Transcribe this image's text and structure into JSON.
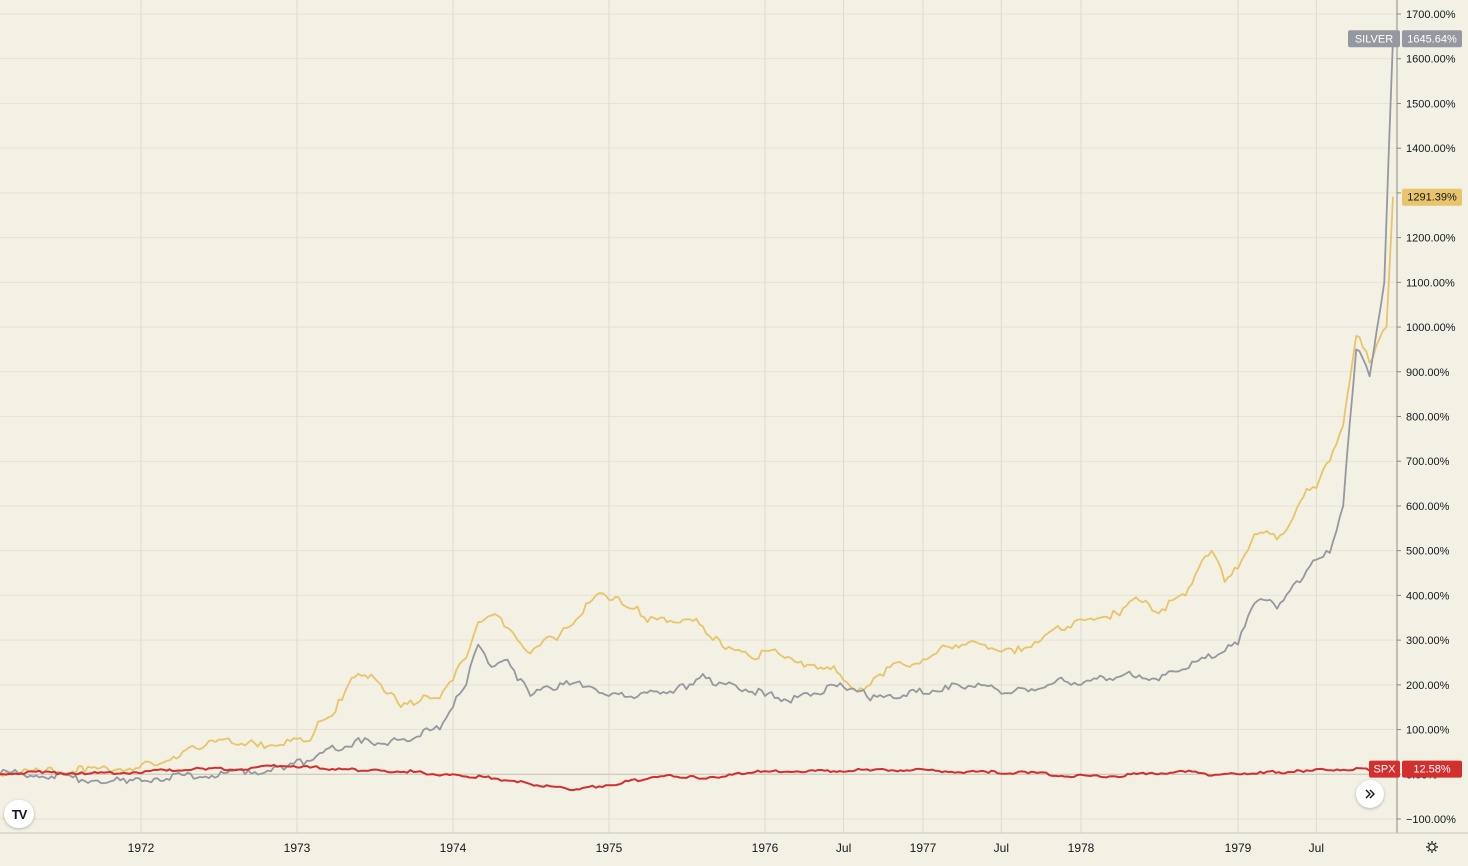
{
  "chart_data": {
    "type": "line",
    "x_range": [
      "1971-03",
      "1979-12"
    ],
    "ylim": [
      -100,
      1700
    ],
    "y_ticks": [
      -100,
      0,
      100,
      200,
      300,
      400,
      500,
      600,
      700,
      800,
      900,
      1000,
      1100,
      1200,
      1300,
      1400,
      1500,
      1600,
      1700
    ],
    "y_tick_labels": [
      "−100.00%",
      "0.00%",
      "100.00%",
      "200.00%",
      "300.00%",
      "400.00%",
      "500.00%",
      "600.00%",
      "700.00%",
      "800.00%",
      "900.00%",
      "1000.00%",
      "1100.00%",
      "1200.00%",
      "1300.00%",
      "1400.00%",
      "1500.00%",
      "1600.00%",
      "1700.00%"
    ],
    "x_ticks": [
      {
        "date": "1972-01",
        "label": "1972"
      },
      {
        "date": "1973-01",
        "label": "1973"
      },
      {
        "date": "1974-01",
        "label": "1974"
      },
      {
        "date": "1975-01",
        "label": "1975"
      },
      {
        "date": "1976-01",
        "label": "1976"
      },
      {
        "date": "1976-07",
        "label": "Jul"
      },
      {
        "date": "1977-01",
        "label": "1977"
      },
      {
        "date": "1977-07",
        "label": "Jul"
      },
      {
        "date": "1978-01",
        "label": "1978"
      },
      {
        "date": "1979-01",
        "label": "1979"
      },
      {
        "date": "1979-07",
        "label": "Jul"
      }
    ],
    "grid": true,
    "scale": "percent",
    "series": [
      {
        "name": "",
        "color": "#e8c46a",
        "last_value_label": "1291.39%",
        "points": [
          [
            "1971-03",
            0
          ],
          [
            "1971-06",
            2
          ],
          [
            "1971-09",
            5
          ],
          [
            "1971-12",
            10
          ],
          [
            "1972-02",
            20
          ],
          [
            "1972-04",
            40
          ],
          [
            "1972-06",
            65
          ],
          [
            "1972-08",
            70
          ],
          [
            "1972-10",
            62
          ],
          [
            "1972-12",
            65
          ],
          [
            "1973-02",
            75
          ],
          [
            "1973-03",
            120
          ],
          [
            "1973-04",
            140
          ],
          [
            "1973-05",
            200
          ],
          [
            "1973-06",
            220
          ],
          [
            "1973-07",
            215
          ],
          [
            "1973-08",
            180
          ],
          [
            "1973-09",
            150
          ],
          [
            "1973-10",
            155
          ],
          [
            "1973-11",
            175
          ],
          [
            "1973-12",
            170
          ],
          [
            "1974-01",
            210
          ],
          [
            "1974-02",
            260
          ],
          [
            "1974-03",
            340
          ],
          [
            "1974-04",
            355
          ],
          [
            "1974-05",
            330
          ],
          [
            "1974-06",
            300
          ],
          [
            "1974-07",
            270
          ],
          [
            "1974-08",
            300
          ],
          [
            "1974-09",
            300
          ],
          [
            "1974-10",
            330
          ],
          [
            "1974-11",
            360
          ],
          [
            "1974-12",
            400
          ],
          [
            "1975-01",
            390
          ],
          [
            "1975-02",
            380
          ],
          [
            "1975-03",
            370
          ],
          [
            "1975-04",
            340
          ],
          [
            "1975-06",
            340
          ],
          [
            "1975-08",
            335
          ],
          [
            "1975-09",
            300
          ],
          [
            "1975-10",
            280
          ],
          [
            "1975-12",
            260
          ],
          [
            "1976-02",
            270
          ],
          [
            "1976-04",
            240
          ],
          [
            "1976-06",
            235
          ],
          [
            "1976-07",
            210
          ],
          [
            "1976-08",
            185
          ],
          [
            "1976-09",
            200
          ],
          [
            "1976-10",
            220
          ],
          [
            "1976-11",
            250
          ],
          [
            "1976-12",
            240
          ],
          [
            "1977-02",
            270
          ],
          [
            "1977-04",
            290
          ],
          [
            "1977-06",
            280
          ],
          [
            "1977-08",
            270
          ],
          [
            "1977-10",
            300
          ],
          [
            "1977-12",
            330
          ],
          [
            "1978-02",
            345
          ],
          [
            "1978-04",
            355
          ],
          [
            "1978-05",
            390
          ],
          [
            "1978-07",
            360
          ],
          [
            "1978-09",
            400
          ],
          [
            "1978-10",
            460
          ],
          [
            "1978-11",
            500
          ],
          [
            "1978-12",
            430
          ],
          [
            "1979-01",
            460
          ],
          [
            "1979-02",
            520
          ],
          [
            "1979-03",
            540
          ],
          [
            "1979-04",
            525
          ],
          [
            "1979-05",
            560
          ],
          [
            "1979-06",
            620
          ],
          [
            "1979-07",
            640
          ],
          [
            "1979-08",
            700
          ],
          [
            "1979-09",
            780
          ],
          [
            "1979-10",
            980
          ],
          [
            "1979-11",
            920
          ],
          [
            "1979-12-10",
            1000
          ],
          [
            "1979-12-18",
            1150
          ],
          [
            "1979-12-25",
            1291.39
          ]
        ]
      },
      {
        "name": "SILVER",
        "color": "#9598a1",
        "last_value_label": "1645.64%",
        "points": [
          [
            "1971-03",
            0
          ],
          [
            "1971-06",
            -5
          ],
          [
            "1971-09",
            -15
          ],
          [
            "1971-12",
            -20
          ],
          [
            "1972-03",
            -10
          ],
          [
            "1972-06",
            -5
          ],
          [
            "1972-09",
            0
          ],
          [
            "1972-12",
            10
          ],
          [
            "1973-02",
            30
          ],
          [
            "1973-04",
            55
          ],
          [
            "1973-06",
            70
          ],
          [
            "1973-08",
            65
          ],
          [
            "1973-10",
            80
          ],
          [
            "1973-12",
            100
          ],
          [
            "1974-01",
            150
          ],
          [
            "1974-02",
            200
          ],
          [
            "1974-03",
            290
          ],
          [
            "1974-04",
            240
          ],
          [
            "1974-05",
            255
          ],
          [
            "1974-06",
            210
          ],
          [
            "1974-07",
            175
          ],
          [
            "1974-08",
            195
          ],
          [
            "1974-09",
            190
          ],
          [
            "1974-10",
            200
          ],
          [
            "1974-11",
            195
          ],
          [
            "1974-12",
            190
          ],
          [
            "1975-01",
            175
          ],
          [
            "1975-03",
            170
          ],
          [
            "1975-05",
            180
          ],
          [
            "1975-07",
            190
          ],
          [
            "1975-08",
            215
          ],
          [
            "1975-09",
            200
          ],
          [
            "1975-11",
            190
          ],
          [
            "1976-01",
            175
          ],
          [
            "1976-03",
            160
          ],
          [
            "1976-05",
            180
          ],
          [
            "1976-07",
            195
          ],
          [
            "1976-08",
            185
          ],
          [
            "1976-09",
            165
          ],
          [
            "1976-11",
            170
          ],
          [
            "1977-01",
            180
          ],
          [
            "1977-03",
            190
          ],
          [
            "1977-05",
            195
          ],
          [
            "1977-07",
            180
          ],
          [
            "1977-09",
            185
          ],
          [
            "1977-11",
            205
          ],
          [
            "1978-01",
            200
          ],
          [
            "1978-03",
            210
          ],
          [
            "1978-05",
            220
          ],
          [
            "1978-07",
            210
          ],
          [
            "1978-09",
            235
          ],
          [
            "1978-11",
            260
          ],
          [
            "1979-01",
            290
          ],
          [
            "1979-02",
            370
          ],
          [
            "1979-03",
            390
          ],
          [
            "1979-04",
            370
          ],
          [
            "1979-05",
            410
          ],
          [
            "1979-06",
            440
          ],
          [
            "1979-07",
            480
          ],
          [
            "1979-08",
            495
          ],
          [
            "1979-09",
            600
          ],
          [
            "1979-10",
            950
          ],
          [
            "1979-11",
            890
          ],
          [
            "1979-12-05",
            1100
          ],
          [
            "1979-12-15",
            1380
          ],
          [
            "1979-12-25",
            1645.64
          ]
        ]
      },
      {
        "name": "SPX",
        "color": "#d32f2f",
        "last_value_label": "12.58%",
        "points": [
          [
            "1971-03",
            0
          ],
          [
            "1971-06",
            3
          ],
          [
            "1971-09",
            0
          ],
          [
            "1971-12",
            2
          ],
          [
            "1972-03",
            8
          ],
          [
            "1972-06",
            10
          ],
          [
            "1972-09",
            10
          ],
          [
            "1972-12",
            18
          ],
          [
            "1973-02",
            15
          ],
          [
            "1973-04",
            10
          ],
          [
            "1973-06",
            8
          ],
          [
            "1973-08",
            5
          ],
          [
            "1973-10",
            5
          ],
          [
            "1973-12",
            -3
          ],
          [
            "1974-02",
            -5
          ],
          [
            "1974-04",
            -10
          ],
          [
            "1974-06",
            -18
          ],
          [
            "1974-08",
            -28
          ],
          [
            "1974-10",
            -35
          ],
          [
            "1974-12",
            -30
          ],
          [
            "1975-02",
            -20
          ],
          [
            "1975-04",
            -10
          ],
          [
            "1975-06",
            -5
          ],
          [
            "1975-08",
            -10
          ],
          [
            "1975-10",
            -5
          ],
          [
            "1975-12",
            3
          ],
          [
            "1976-03",
            5
          ],
          [
            "1976-06",
            5
          ],
          [
            "1976-09",
            8
          ],
          [
            "1976-12",
            8
          ],
          [
            "1977-03",
            5
          ],
          [
            "1977-06",
            3
          ],
          [
            "1977-09",
            2
          ],
          [
            "1977-12",
            -5
          ],
          [
            "1978-03",
            -7
          ],
          [
            "1978-06",
            0
          ],
          [
            "1978-09",
            5
          ],
          [
            "1978-11",
            -3
          ],
          [
            "1979-01",
            0
          ],
          [
            "1979-03",
            2
          ],
          [
            "1979-06",
            5
          ],
          [
            "1979-09",
            10
          ],
          [
            "1979-11",
            8
          ],
          [
            "1979-12-25",
            12.58
          ]
        ]
      }
    ]
  },
  "ui": {
    "logo_text": "TV",
    "scroll_icon": "double-chevron-right-icon",
    "settings_icon": "gear-icon"
  }
}
